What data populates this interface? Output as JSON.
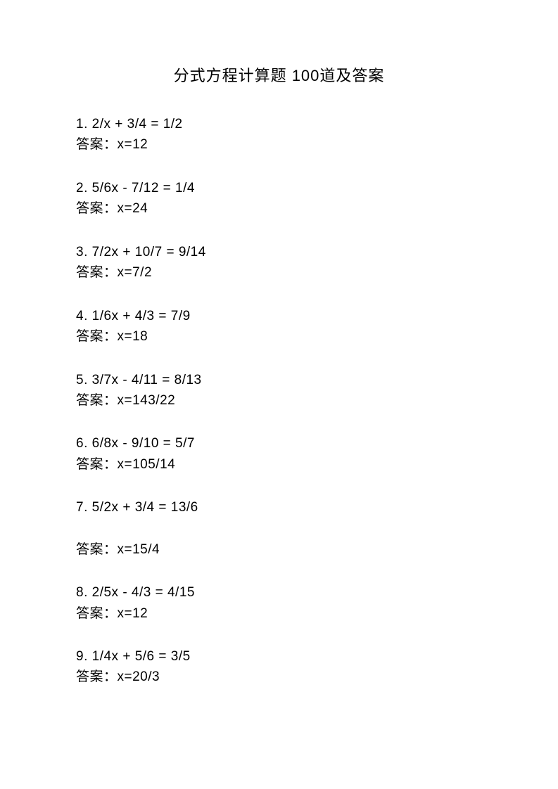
{
  "title": "分式方程计算题 100道及答案",
  "answer_prefix": "答案：",
  "problems": [
    {
      "num": "1.",
      "equation": "2/x + 3/4 = 1/2",
      "answer": "x=12",
      "gap": false
    },
    {
      "num": "2.",
      "equation": "5/6x - 7/12 = 1/4",
      "answer": "x=24",
      "gap": false
    },
    {
      "num": "3.",
      "equation": "7/2x + 10/7 = 9/14",
      "answer": "x=7/2",
      "gap": false
    },
    {
      "num": "4.",
      "equation": "1/6x + 4/3 = 7/9",
      "answer": "x=18",
      "gap": false
    },
    {
      "num": "5.",
      "equation": "3/7x - 4/11 = 8/13",
      "answer": "x=143/22",
      "gap": false
    },
    {
      "num": "6.",
      "equation": "6/8x - 9/10 = 5/7",
      "answer": "x=105/14",
      "gap": false
    },
    {
      "num": "7.",
      "equation": "5/2x + 3/4 = 13/6",
      "answer": "x=15/4",
      "gap": true
    },
    {
      "num": "8.",
      "equation": "2/5x - 4/3 = 4/15",
      "answer": "x=12",
      "gap": false
    },
    {
      "num": "9.",
      "equation": "1/4x + 5/6 = 3/5",
      "answer": "x=20/3",
      "gap": false
    }
  ]
}
